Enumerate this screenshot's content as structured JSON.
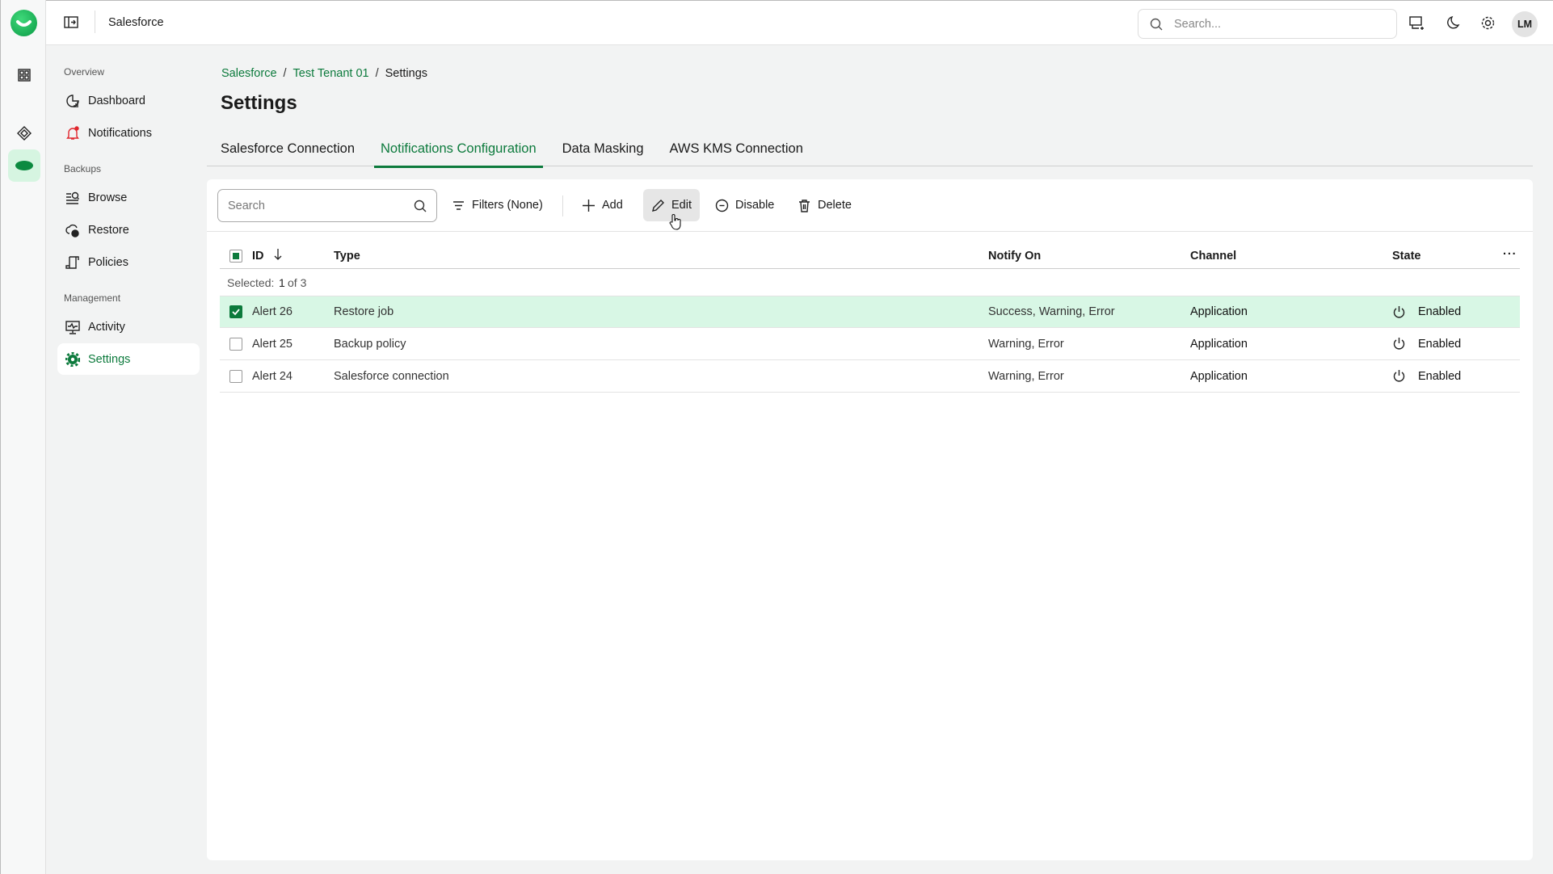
{
  "app": {
    "title": "Salesforce",
    "avatar": "LM",
    "search_placeholder": "Search..."
  },
  "sidebar": {
    "sections": [
      {
        "label": "Overview",
        "items": [
          {
            "label": "Dashboard",
            "icon": "dashboard-icon"
          },
          {
            "label": "Notifications",
            "icon": "bell-icon"
          }
        ]
      },
      {
        "label": "Backups",
        "items": [
          {
            "label": "Browse",
            "icon": "browse-icon"
          },
          {
            "label": "Restore",
            "icon": "restore-icon"
          },
          {
            "label": "Policies",
            "icon": "policy-icon"
          }
        ]
      },
      {
        "label": "Management",
        "items": [
          {
            "label": "Activity",
            "icon": "activity-icon"
          },
          {
            "label": "Settings",
            "icon": "gear-icon",
            "active": true
          }
        ]
      }
    ]
  },
  "breadcrumb": [
    "Salesforce",
    "Test Tenant 01",
    "Settings"
  ],
  "page_title": "Settings",
  "tabs": [
    {
      "label": "Salesforce Connection"
    },
    {
      "label": "Notifications Configuration",
      "active": true
    },
    {
      "label": "Data Masking"
    },
    {
      "label": "AWS KMS Connection"
    }
  ],
  "toolbar": {
    "search_placeholder": "Search",
    "filters": "Filters (None)",
    "add": "Add",
    "edit": "Edit",
    "disable": "Disable",
    "delete": "Delete"
  },
  "table": {
    "columns": [
      "ID",
      "Type",
      "Notify On",
      "Channel",
      "State"
    ],
    "selected_label": "Selected:",
    "selected_count": "1",
    "selected_of": "of 3",
    "rows": [
      {
        "id": "Alert 26",
        "type": "Restore job",
        "notify": "Success, Warning, Error",
        "channel": "Application",
        "state": "Enabled",
        "selected": true
      },
      {
        "id": "Alert 25",
        "type": "Backup policy",
        "notify": "Warning, Error",
        "channel": "Application",
        "state": "Enabled",
        "selected": false
      },
      {
        "id": "Alert 24",
        "type": "Salesforce connection",
        "notify": "Warning, Error",
        "channel": "Application",
        "state": "Enabled",
        "selected": false
      }
    ]
  },
  "colors": {
    "accent": "#0c7a3c",
    "selected_row": "#d8f7e5",
    "alert": "#e0262d"
  }
}
